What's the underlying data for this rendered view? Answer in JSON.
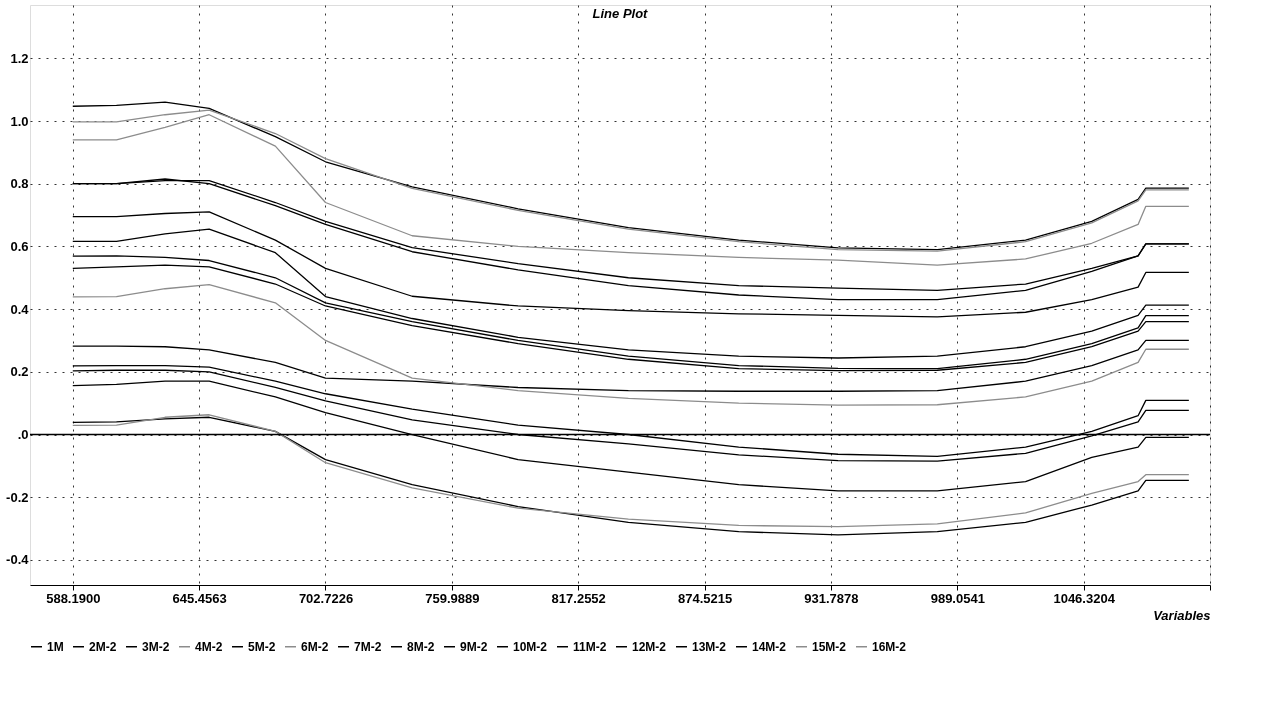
{
  "chart_data": {
    "type": "line",
    "title": "Line Plot",
    "xlabel": "Variables",
    "x": [
      588.19,
      608,
      630,
      650,
      680,
      702.72,
      742,
      790,
      840,
      890,
      935,
      980,
      1020,
      1050,
      1071,
      1074.5,
      1094
    ],
    "xlim": [
      568.8,
      1103.5867
    ],
    "ylim": [
      -0.48,
      1.37
    ],
    "xticks": [
      {
        "value": 588.19,
        "label": "588.1900"
      },
      {
        "value": 645.4563,
        "label": "645.4563"
      },
      {
        "value": 702.7226,
        "label": "702.7226"
      },
      {
        "value": 759.9889,
        "label": "759.9889"
      },
      {
        "value": 817.2552,
        "label": "817.2552"
      },
      {
        "value": 874.5215,
        "label": "874.5215"
      },
      {
        "value": 931.7878,
        "label": "931.7878"
      },
      {
        "value": 989.0541,
        "label": "989.0541"
      },
      {
        "value": 1046.3204,
        "label": "1046.3204"
      },
      {
        "value": 1103.5867,
        "label": null
      }
    ],
    "yticks": [
      {
        "value": 1.2,
        "label": "1.2"
      },
      {
        "value": 1.0,
        "label": "1.0"
      },
      {
        "value": 0.8,
        "label": "0.8"
      },
      {
        "value": 0.6,
        "label": "0.6"
      },
      {
        "value": 0.4,
        "label": "0.4"
      },
      {
        "value": 0.2,
        "label": "0.2"
      },
      {
        "value": 0,
        "label": ".0"
      },
      {
        "value": -0.2,
        "label": "-0.2"
      },
      {
        "value": -0.4,
        "label": "-0.4"
      }
    ],
    "grid": true,
    "legend": "bottom",
    "marker": "none",
    "line_style": "solid",
    "ref_lines": [
      {
        "axis": "y",
        "value": 0,
        "color": "#000000"
      }
    ],
    "series": [
      {
        "name": "1M",
        "color": "#000000",
        "values": [
          1.047,
          1.05,
          1.06,
          1.04,
          0.95,
          0.87,
          0.79,
          0.72,
          0.66,
          0.62,
          0.595,
          0.59,
          0.62,
          0.68,
          0.75,
          0.786,
          0.786
        ]
      },
      {
        "name": "2M-2",
        "color": "#000000",
        "values": [
          0.8,
          0.8,
          0.81,
          0.81,
          0.74,
          0.68,
          0.596,
          0.545,
          0.5,
          0.475,
          0.467,
          0.46,
          0.48,
          0.53,
          0.57,
          0.608,
          0.608
        ]
      },
      {
        "name": "3M-2",
        "color": "#000000",
        "values": [
          0.8,
          0.8,
          0.815,
          0.8,
          0.73,
          0.67,
          0.583,
          0.525,
          0.475,
          0.445,
          0.43,
          0.43,
          0.46,
          0.52,
          0.57,
          0.608,
          0.608
        ]
      },
      {
        "name": "4M-2",
        "color": "#8c8c8c",
        "values": [
          0.997,
          0.997,
          1.02,
          1.035,
          0.96,
          0.88,
          0.785,
          0.715,
          0.655,
          0.615,
          0.59,
          0.585,
          0.615,
          0.675,
          0.745,
          0.78,
          0.78
        ]
      },
      {
        "name": "5M-2",
        "color": "#000000",
        "values": [
          0.695,
          0.695,
          0.705,
          0.71,
          0.62,
          0.53,
          0.441,
          0.41,
          0.395,
          0.385,
          0.38,
          0.375,
          0.39,
          0.43,
          0.47,
          0.517,
          0.517
        ]
      },
      {
        "name": "6M-2",
        "color": "#8c8c8c",
        "values": [
          0.94,
          0.94,
          0.98,
          1.02,
          0.92,
          0.74,
          0.634,
          0.6,
          0.58,
          0.565,
          0.556,
          0.54,
          0.56,
          0.61,
          0.67,
          0.728,
          0.728
        ]
      },
      {
        "name": "7M-2",
        "color": "#000000",
        "values": [
          0.616,
          0.616,
          0.64,
          0.655,
          0.58,
          0.44,
          0.37,
          0.31,
          0.27,
          0.25,
          0.244,
          0.25,
          0.28,
          0.33,
          0.38,
          0.413,
          0.413
        ]
      },
      {
        "name": "8M-2",
        "color": "#000000",
        "values": [
          0.569,
          0.57,
          0.565,
          0.555,
          0.5,
          0.42,
          0.36,
          0.3,
          0.25,
          0.22,
          0.211,
          0.21,
          0.24,
          0.29,
          0.34,
          0.379,
          0.379
        ]
      },
      {
        "name": "9M-2",
        "color": "#000000",
        "values": [
          0.53,
          0.535,
          0.54,
          0.535,
          0.48,
          0.41,
          0.347,
          0.29,
          0.24,
          0.21,
          0.204,
          0.205,
          0.23,
          0.28,
          0.33,
          0.36,
          0.36
        ]
      },
      {
        "name": "10M-2",
        "color": "#000000",
        "values": [
          0.282,
          0.282,
          0.28,
          0.27,
          0.23,
          0.18,
          0.17,
          0.15,
          0.14,
          0.138,
          0.138,
          0.14,
          0.17,
          0.22,
          0.27,
          0.3,
          0.3
        ]
      },
      {
        "name": "11M-2",
        "color": "#000000",
        "values": [
          0.219,
          0.22,
          0.22,
          0.215,
          0.17,
          0.13,
          0.081,
          0.03,
          0.0,
          -0.04,
          -0.063,
          -0.07,
          -0.04,
          0.01,
          0.06,
          0.109,
          0.109
        ]
      },
      {
        "name": "12M-2",
        "color": "#000000",
        "values": [
          0.203,
          0.205,
          0.205,
          0.2,
          0.15,
          0.107,
          0.047,
          0.0,
          -0.03,
          -0.065,
          -0.083,
          -0.085,
          -0.06,
          -0.004,
          0.04,
          0.077,
          0.077
        ]
      },
      {
        "name": "13M-2",
        "color": "#000000",
        "values": [
          0.156,
          0.16,
          0.17,
          0.17,
          0.12,
          0.07,
          0.0,
          -0.08,
          -0.12,
          -0.16,
          -0.18,
          -0.18,
          -0.15,
          -0.073,
          -0.04,
          -0.009,
          -0.009
        ]
      },
      {
        "name": "14M-2",
        "color": "#000000",
        "values": [
          0.039,
          0.04,
          0.05,
          0.055,
          0.01,
          -0.08,
          -0.16,
          -0.23,
          -0.28,
          -0.31,
          -0.32,
          -0.31,
          -0.28,
          -0.225,
          -0.18,
          -0.146,
          -0.146
        ]
      },
      {
        "name": "15M-2",
        "color": "#8c8c8c",
        "values": [
          0.439,
          0.44,
          0.465,
          0.478,
          0.42,
          0.3,
          0.18,
          0.14,
          0.115,
          0.1,
          0.094,
          0.095,
          0.12,
          0.17,
          0.23,
          0.272,
          0.272
        ]
      },
      {
        "name": "16M-2",
        "color": "#8c8c8c",
        "values": [
          0.029,
          0.03,
          0.055,
          0.063,
          0.01,
          -0.09,
          -0.17,
          -0.235,
          -0.27,
          -0.29,
          -0.294,
          -0.285,
          -0.25,
          -0.188,
          -0.15,
          -0.128,
          -0.128
        ]
      }
    ]
  }
}
